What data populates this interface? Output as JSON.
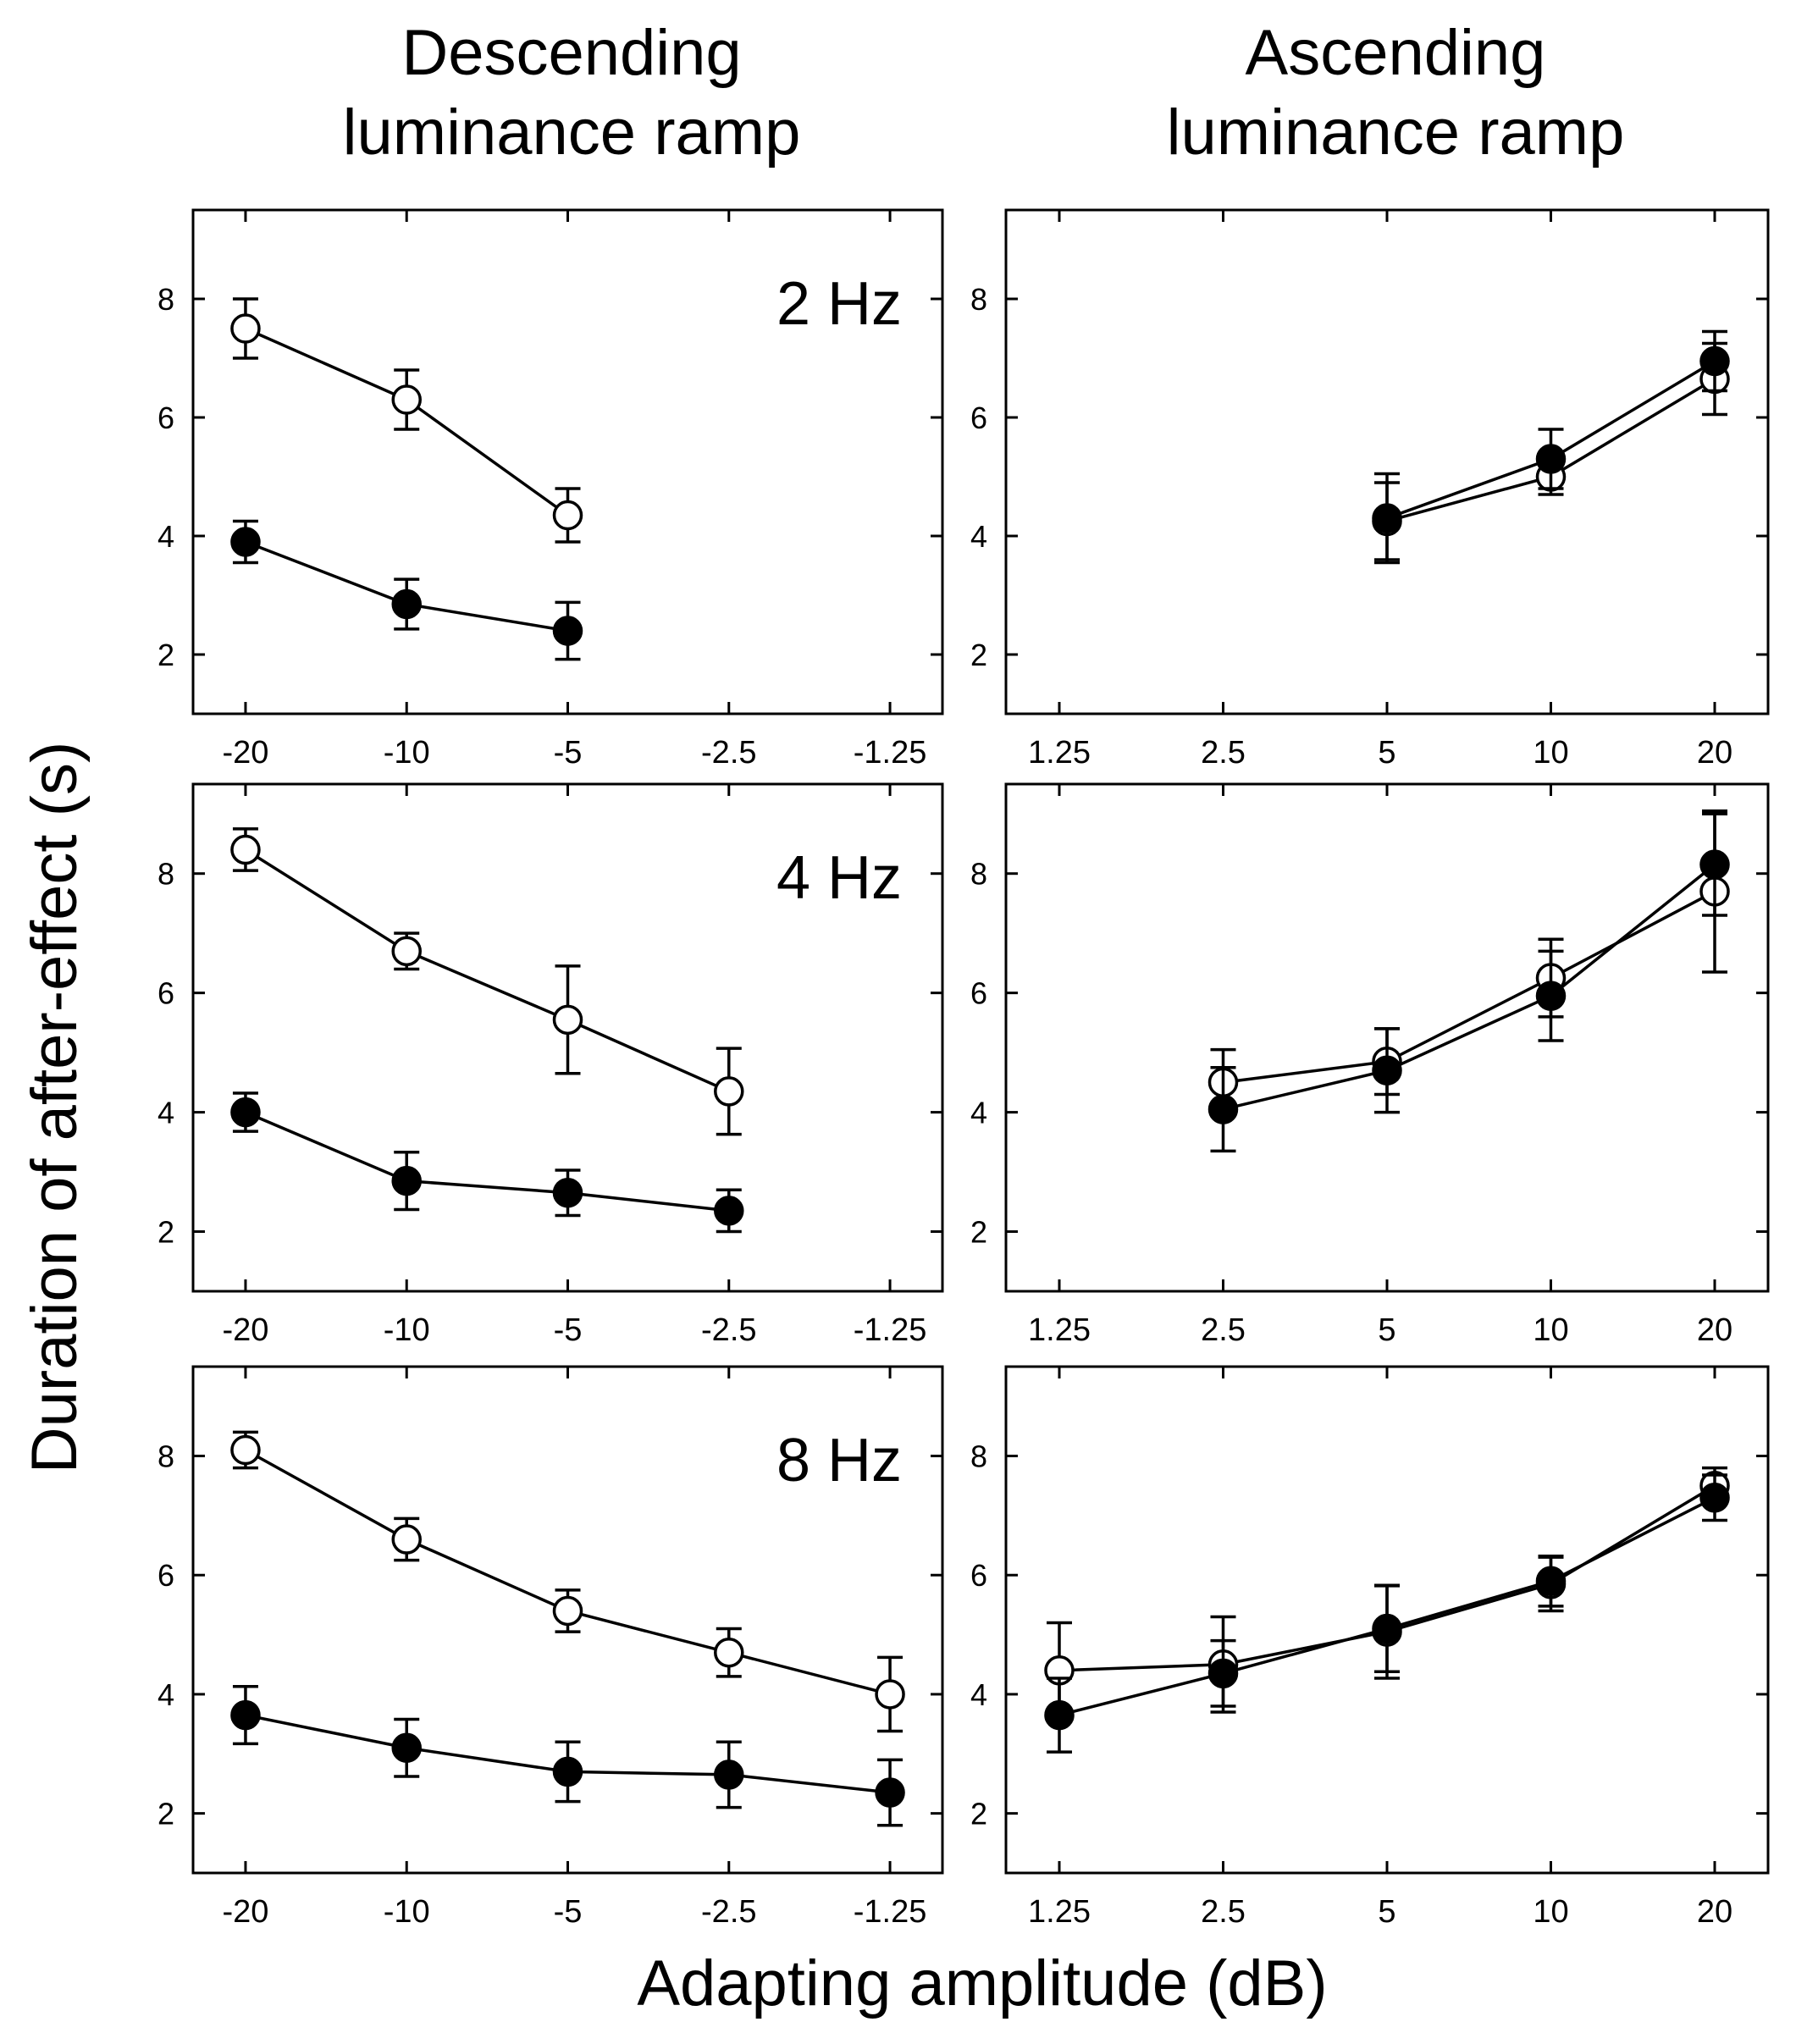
{
  "figure": {
    "column_titles": {
      "left_line1": "Descending",
      "left_line2": "luminance ramp",
      "right_line1": "Ascending",
      "right_line2": "luminance ramp"
    },
    "ylabel": "Duration of after-effect (s)",
    "xlabel": "Adapting amplitude (dB)",
    "colors": {
      "ink": "#000000",
      "open_fill": "#ffffff",
      "background": "#ffffff"
    }
  },
  "chart_data": [
    {
      "id": "desc-2hz",
      "type": "line",
      "title": "2 Hz",
      "categories": [
        "-20",
        "-10",
        "-5",
        "-2.5",
        "-1.25"
      ],
      "ylim": [
        1,
        9.5
      ],
      "yticks": [
        "2",
        "4",
        "6",
        "8"
      ],
      "series": [
        {
          "name": "open",
          "marker": "open-circle",
          "values": [
            7.5,
            6.3,
            4.35,
            null,
            null
          ],
          "errors": [
            0.5,
            0.5,
            0.45,
            null,
            null
          ]
        },
        {
          "name": "filled",
          "marker": "filled-circle",
          "values": [
            3.9,
            2.85,
            2.4,
            null,
            null
          ],
          "errors": [
            0.35,
            0.42,
            0.48,
            null,
            null
          ]
        }
      ]
    },
    {
      "id": "asc-2hz",
      "type": "line",
      "title": "",
      "categories": [
        "1.25",
        "2.5",
        "5",
        "10",
        "20"
      ],
      "ylim": [
        1,
        9.5
      ],
      "yticks": [
        "2",
        "4",
        "6",
        "8"
      ],
      "series": [
        {
          "name": "open",
          "marker": "open-circle",
          "values": [
            null,
            null,
            4.25,
            5.0,
            6.65
          ],
          "errors": [
            null,
            null,
            0.65,
            0.3,
            0.6
          ]
        },
        {
          "name": "filled",
          "marker": "filled-circle",
          "values": [
            null,
            null,
            4.3,
            5.3,
            6.95
          ],
          "errors": [
            null,
            null,
            0.75,
            0.5,
            0.5
          ]
        }
      ]
    },
    {
      "id": "desc-4hz",
      "type": "line",
      "title": "4 Hz",
      "categories": [
        "-20",
        "-10",
        "-5",
        "-2.5",
        "-1.25"
      ],
      "ylim": [
        1,
        9.5
      ],
      "yticks": [
        "2",
        "4",
        "6",
        "8"
      ],
      "series": [
        {
          "name": "open",
          "marker": "open-circle",
          "values": [
            8.4,
            6.7,
            5.55,
            4.35,
            null
          ],
          "errors": [
            0.35,
            0.3,
            0.9,
            0.72,
            null
          ]
        },
        {
          "name": "filled",
          "marker": "filled-circle",
          "values": [
            4.0,
            2.85,
            2.65,
            2.35,
            null
          ],
          "errors": [
            0.32,
            0.48,
            0.38,
            0.35,
            null
          ]
        }
      ]
    },
    {
      "id": "asc-4hz",
      "type": "line",
      "title": "",
      "categories": [
        "1.25",
        "2.5",
        "5",
        "10",
        "20"
      ],
      "ylim": [
        1,
        9.5
      ],
      "yticks": [
        "2",
        "4",
        "6",
        "8"
      ],
      "series": [
        {
          "name": "open",
          "marker": "open-circle",
          "values": [
            null,
            4.5,
            4.85,
            6.25,
            7.7
          ],
          "errors": [
            null,
            0.55,
            0.55,
            0.65,
            1.35
          ]
        },
        {
          "name": "filled",
          "marker": "filled-circle",
          "values": [
            null,
            4.05,
            4.7,
            5.95,
            8.15
          ],
          "errors": [
            null,
            0.7,
            0.7,
            0.75,
            0.85
          ]
        }
      ]
    },
    {
      "id": "desc-8hz",
      "type": "line",
      "title": "8 Hz",
      "categories": [
        "-20",
        "-10",
        "-5",
        "-2.5",
        "-1.25"
      ],
      "ylim": [
        1,
        9.5
      ],
      "yticks": [
        "2",
        "4",
        "6",
        "8"
      ],
      "series": [
        {
          "name": "open",
          "marker": "open-circle",
          "values": [
            8.1,
            6.6,
            5.4,
            4.7,
            4.0
          ],
          "errors": [
            0.3,
            0.35,
            0.35,
            0.4,
            0.62
          ]
        },
        {
          "name": "filled",
          "marker": "filled-circle",
          "values": [
            3.65,
            3.1,
            2.7,
            2.65,
            2.35
          ],
          "errors": [
            0.48,
            0.48,
            0.5,
            0.55,
            0.55
          ]
        }
      ]
    },
    {
      "id": "asc-8hz",
      "type": "line",
      "title": "",
      "categories": [
        "1.25",
        "2.5",
        "5",
        "10",
        "20"
      ],
      "ylim": [
        1,
        9.5
      ],
      "yticks": [
        "2",
        "4",
        "6",
        "8"
      ],
      "series": [
        {
          "name": "open",
          "marker": "open-circle",
          "values": [
            4.4,
            4.5,
            5.05,
            5.85,
            7.5
          ],
          "errors": [
            0.8,
            0.8,
            0.78,
            0.45,
            0.3
          ]
        },
        {
          "name": "filled",
          "marker": "filled-circle",
          "values": [
            3.65,
            4.35,
            5.1,
            5.9,
            7.3
          ],
          "errors": [
            0.62,
            0.55,
            0.72,
            0.42,
            0.38
          ]
        }
      ]
    }
  ]
}
